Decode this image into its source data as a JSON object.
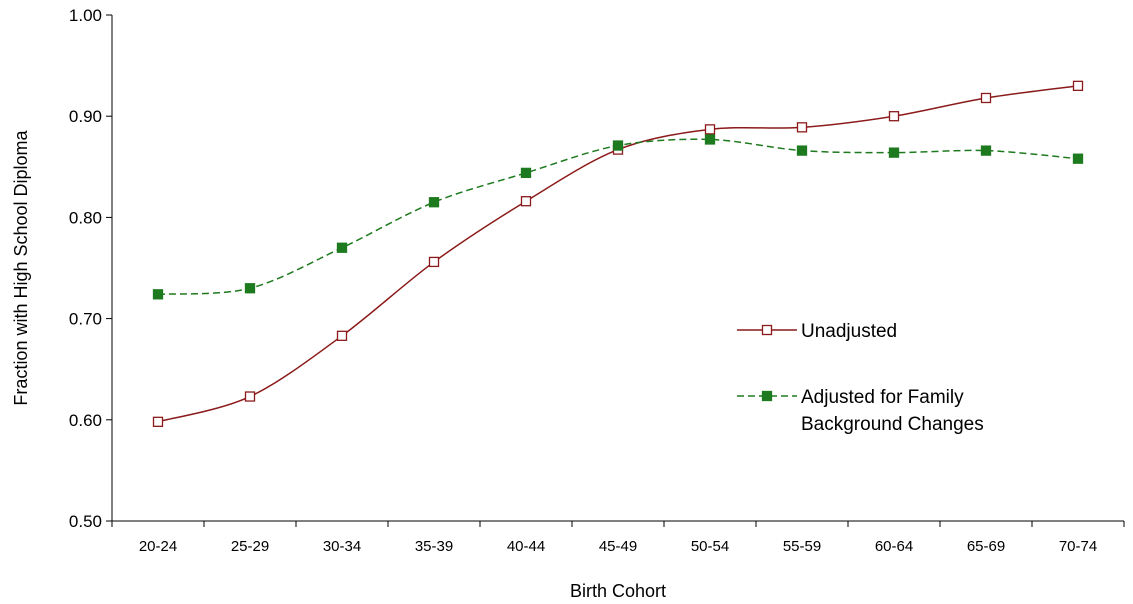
{
  "chart_data": {
    "type": "line",
    "title": "",
    "xlabel": "Birth Cohort",
    "ylabel": "Fraction with High School Diploma",
    "categories": [
      "20-24",
      "25-29",
      "30-34",
      "35-39",
      "40-44",
      "45-49",
      "50-54",
      "55-59",
      "60-64",
      "65-69",
      "70-74"
    ],
    "ylim": [
      0.5,
      1.0
    ],
    "yticks": [
      "0.50",
      "0.60",
      "0.70",
      "0.80",
      "0.90",
      "1.00"
    ],
    "grid": false,
    "legend_position": "right",
    "series": [
      {
        "name": "Unadjusted",
        "color": "#8B1A1A",
        "line_style": "solid",
        "marker": "hollow-square",
        "values": [
          0.598,
          0.623,
          0.683,
          0.756,
          0.816,
          0.867,
          0.887,
          0.889,
          0.9,
          0.918,
          0.93
        ]
      },
      {
        "name_lines": [
          "Adjusted for Family",
          "Background Changes"
        ],
        "color": "#1E7A1E",
        "line_style": "dashed",
        "marker": "filled-square",
        "values": [
          0.724,
          0.73,
          0.77,
          0.815,
          0.844,
          0.871,
          0.877,
          0.866,
          0.864,
          0.866,
          0.858
        ]
      }
    ]
  }
}
